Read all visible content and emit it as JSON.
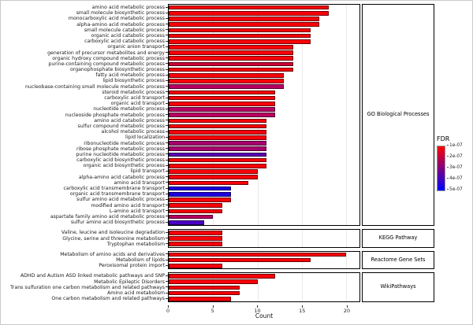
{
  "chart_data": {
    "type": "bar",
    "orientation": "horizontal",
    "title": "",
    "xlabel": "Count",
    "xlim": [
      0,
      21.5
    ],
    "xticks": [
      0,
      5,
      10,
      15,
      20
    ],
    "grid": true,
    "legend": {
      "title": "FDR",
      "position": "right",
      "tick_labels": [
        "1e-07",
        "2e-07",
        "3e-07",
        "4e-07",
        "5e-07"
      ],
      "gradient_stops": [
        "#FF0000",
        "#BF0040",
        "#800080",
        "#4000BF",
        "#0000FF"
      ]
    },
    "facets": [
      {
        "label": "GO Biological Processes",
        "bars": [
          {
            "category": "amino acid metabolic process",
            "value": 18,
            "color": "#F80009"
          },
          {
            "category": "small molecule biosynthetic process",
            "value": 18,
            "color": "#F80009"
          },
          {
            "category": "monocarboxylic acid metabolic process",
            "value": 17,
            "color": "#F80009"
          },
          {
            "category": "alpha-amino acid metabolic process",
            "value": 17,
            "color": "#F80009"
          },
          {
            "category": "small molecule catabolic process",
            "value": 16,
            "color": "#F80009"
          },
          {
            "category": "organic acid catabolic process",
            "value": 16,
            "color": "#F80009"
          },
          {
            "category": "carboxylic acid catabolic process",
            "value": 16,
            "color": "#F80009"
          },
          {
            "category": "organic anion transport",
            "value": 14,
            "color": "#F80009"
          },
          {
            "category": "generation of precursor metabolites and energy",
            "value": 14,
            "color": "#F80009"
          },
          {
            "category": "organic hydroxy compound metabolic process",
            "value": 14,
            "color": "#F80009"
          },
          {
            "category": "purine-containing compound metabolic process",
            "value": 14,
            "color": "#CC0033"
          },
          {
            "category": "organophosphate biosynthetic process",
            "value": 14,
            "color": "#F80009"
          },
          {
            "category": "fatty acid metabolic process",
            "value": 13,
            "color": "#F80009"
          },
          {
            "category": "lipid biosynthetic process",
            "value": 13,
            "color": "#F80009"
          },
          {
            "category": "nucleobase-containing small molecule metabolic process",
            "value": 13,
            "color": "#B80062"
          },
          {
            "category": "steroid metabolic process",
            "value": 12,
            "color": "#F80009"
          },
          {
            "category": "carboxylic acid transport",
            "value": 12,
            "color": "#F80009"
          },
          {
            "category": "organic acid transport",
            "value": 12,
            "color": "#F80009"
          },
          {
            "category": "nucleotide metabolic process",
            "value": 12,
            "color": "#B80062"
          },
          {
            "category": "nucleoside phosphate metabolic process",
            "value": 12,
            "color": "#B80062"
          },
          {
            "category": "amino acid catabolic process",
            "value": 11,
            "color": "#F80009"
          },
          {
            "category": "sulfur compound metabolic process",
            "value": 11,
            "color": "#F80009"
          },
          {
            "category": "alcohol metabolic process",
            "value": 11,
            "color": "#F80009"
          },
          {
            "category": "lipid localization",
            "value": 11,
            "color": "#F80009"
          },
          {
            "category": "ribonucleotide metabolic process",
            "value": 11,
            "color": "#A8006E"
          },
          {
            "category": "ribose phosphate metabolic process",
            "value": 11,
            "color": "#A8006E"
          },
          {
            "category": "purine nucleotide metabolic process",
            "value": 11,
            "color": "#5A00B4"
          },
          {
            "category": "carboxylic acid biosynthetic process",
            "value": 11,
            "color": "#F80009"
          },
          {
            "category": "organic acid biosynthetic process",
            "value": 11,
            "color": "#F80009"
          },
          {
            "category": "lipid transport",
            "value": 10,
            "color": "#F80009"
          },
          {
            "category": "alpha-amino acid catabolic process",
            "value": 10,
            "color": "#F80009"
          },
          {
            "category": "amino acid transport",
            "value": 9,
            "color": "#F80009"
          },
          {
            "category": "carboxylic acid transmembrane transport",
            "value": 7,
            "color": "#1E00E0"
          },
          {
            "category": "organic acid transmembrane transport",
            "value": 7,
            "color": "#1E00E0"
          },
          {
            "category": "sulfur amino acid metabolic process",
            "value": 7,
            "color": "#F80009"
          },
          {
            "category": "modified amino acid transport",
            "value": 6,
            "color": "#F80009"
          },
          {
            "category": "L-amino acid transport",
            "value": 6,
            "color": "#F80009"
          },
          {
            "category": "aspartate family amino acid metabolic process",
            "value": 5,
            "color": "#B80062"
          },
          {
            "category": "sulfur amino acid biosynthetic process",
            "value": 4,
            "color": "#4A00C4"
          }
        ]
      },
      {
        "label": "KEGG Pathway",
        "bars": [
          {
            "category": "Valine, leucine and isoleucine degradation",
            "value": 6,
            "color": "#F80009"
          },
          {
            "category": "Glycine, serine and threonine metabolism",
            "value": 6,
            "color": "#F80009"
          },
          {
            "category": "Tryptophan metabolism",
            "value": 6,
            "color": "#F80009"
          }
        ]
      },
      {
        "label": "Reactome Gene Sets",
        "bars": [
          {
            "category": "Metabolism of amino acids and derivatives",
            "value": 20,
            "color": "#F80009"
          },
          {
            "category": "Metabolism of lipids",
            "value": 16,
            "color": "#F80009"
          },
          {
            "category": "Peroxisomal protein import",
            "value": 6,
            "color": "#F80009"
          }
        ]
      },
      {
        "label": "WikiPathways",
        "bars": [
          {
            "category": "ADHD and Autism ASD linked metabolic pathways and SNP",
            "value": 12,
            "color": "#F80009"
          },
          {
            "category": "Metabolic Epileptic Disorders",
            "value": 10,
            "color": "#F80009"
          },
          {
            "category": "Trans sulfuration one carbon metabolism and related pathways",
            "value": 8,
            "color": "#F80009"
          },
          {
            "category": "Amino acid metabolism",
            "value": 8,
            "color": "#F80009"
          },
          {
            "category": "One carbon metabolism and related pathways",
            "value": 7,
            "color": "#F80009"
          }
        ]
      }
    ]
  }
}
